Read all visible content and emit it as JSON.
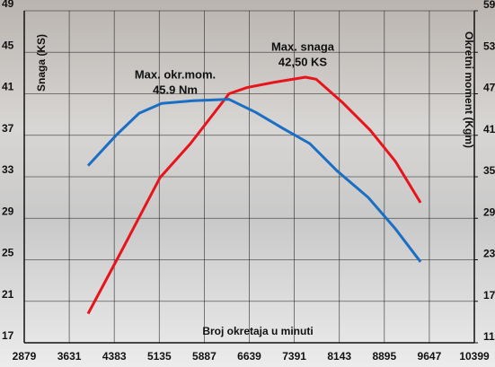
{
  "chart_data": {
    "type": "line",
    "x_label": "Broj okretaja u minuti",
    "y_label": "Snaga (KS)",
    "y2_label": "Okretni moment (Kgm)",
    "annotations": [
      {
        "lines": [
          "Max. okr.mom.",
          "45.9 Nm"
        ]
      },
      {
        "lines": [
          "Max. snaga",
          "42,50 KS"
        ]
      }
    ],
    "xlim": [
      2879,
      10399
    ],
    "xticks": [
      2879,
      3631,
      4383,
      5135,
      5887,
      6639,
      7391,
      8143,
      8895,
      9647,
      10399
    ],
    "ylim": [
      17,
      49
    ],
    "yticks": [
      17,
      21,
      25,
      29,
      33,
      37,
      41,
      45,
      49
    ],
    "y2lim": [
      11,
      59
    ],
    "y2ticks": [
      11,
      17,
      23,
      29,
      35,
      41,
      47,
      53,
      59
    ],
    "grid": true,
    "series": [
      {
        "name": "Snaga",
        "color": "#e8141c",
        "x": [
          3945,
          4500,
          5145,
          5656,
          6300,
          6600,
          7050,
          7577,
          7757,
          8207,
          8657,
          9078,
          9500
        ],
        "values": [
          19.8,
          25.8,
          32.9,
          36.2,
          41.0,
          41.6,
          42.1,
          42.6,
          42.4,
          40.1,
          37.5,
          34.5,
          30.5
        ]
      },
      {
        "name": "Okretni moment",
        "color": "#1a6fc4",
        "axis": "y2",
        "x": [
          3945,
          4425,
          4800,
          5175,
          5700,
          6300,
          6750,
          7200,
          7650,
          8100,
          8627,
          9078,
          9500
        ],
        "values": [
          36.6,
          41.1,
          44.2,
          45.6,
          46.0,
          46.2,
          44.3,
          42.0,
          39.8,
          35.9,
          32.0,
          27.5,
          22.7
        ]
      }
    ]
  }
}
